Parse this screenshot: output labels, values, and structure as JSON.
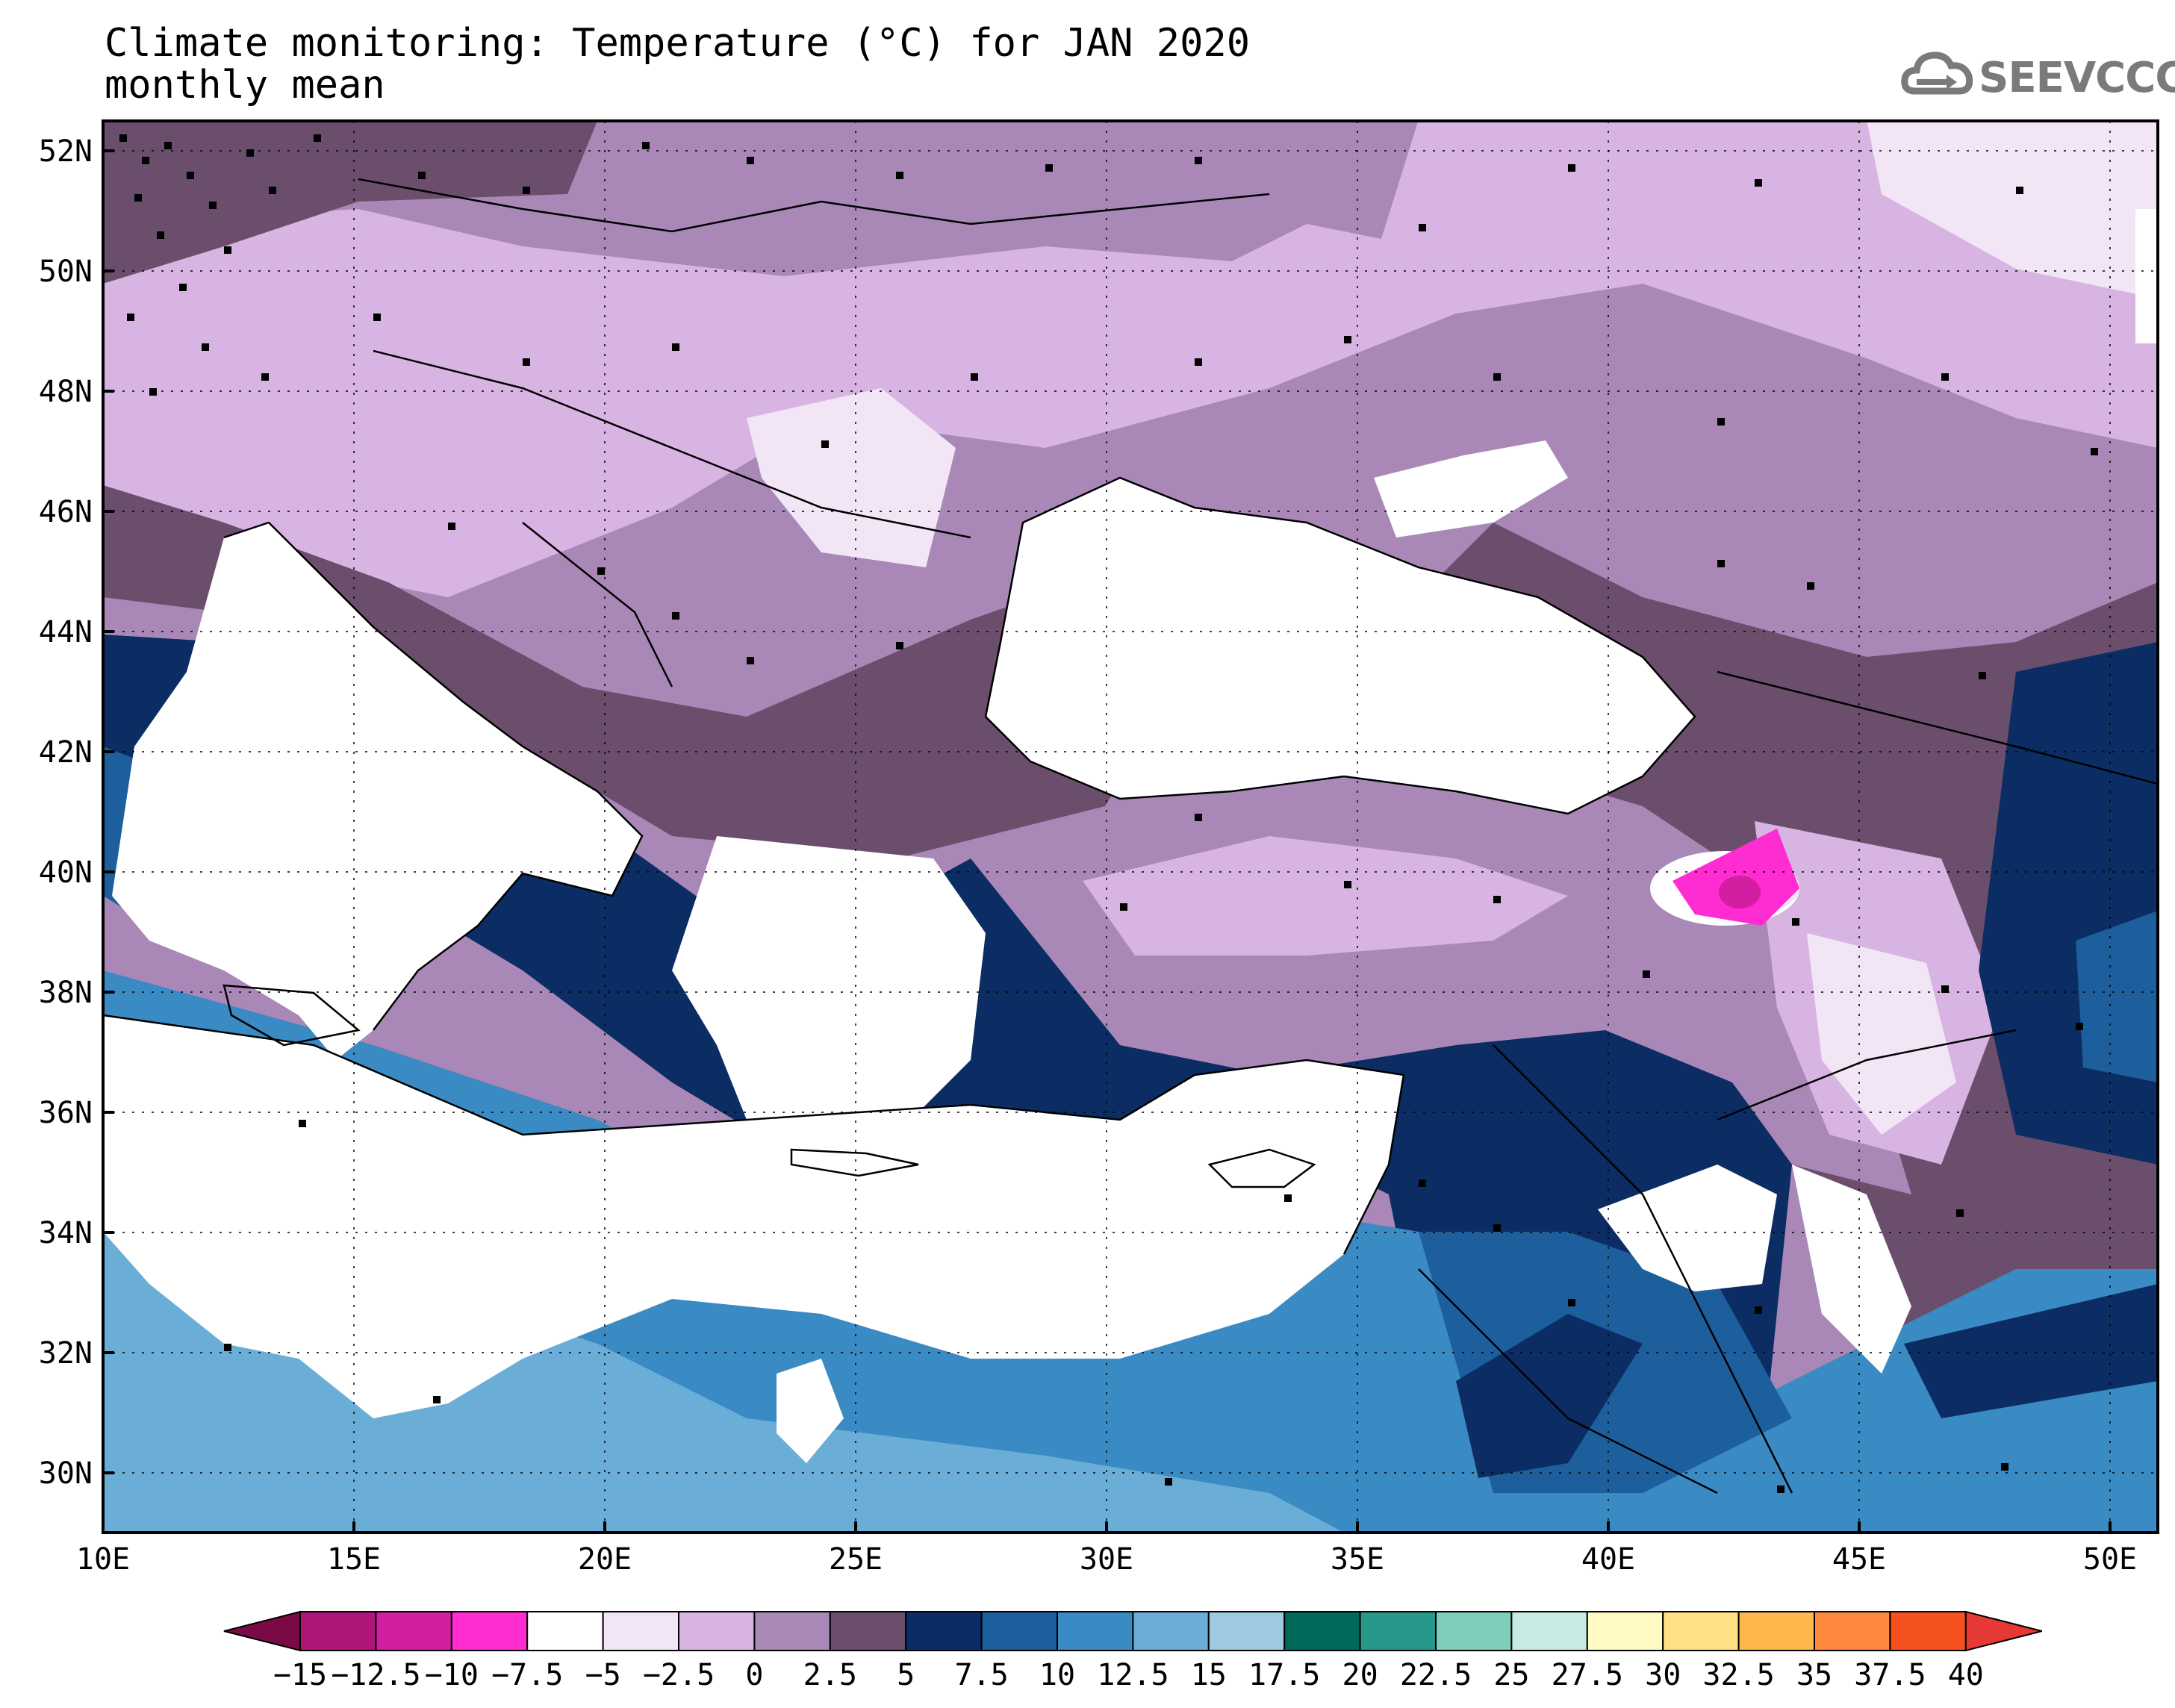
{
  "title": {
    "line1": "Climate monitoring: Temperature (°C) for JAN 2020",
    "line2": "monthly mean"
  },
  "logo": {
    "text": "SEEVCCC",
    "icon": "cloud-icon"
  },
  "map": {
    "lon_range": [
      10,
      51
    ],
    "lat_range": [
      29,
      52.5
    ],
    "lon_ticks": [
      "10E",
      "15E",
      "20E",
      "25E",
      "30E",
      "35E",
      "40E",
      "45E",
      "50E"
    ],
    "lat_ticks": [
      "52N",
      "50N",
      "48N",
      "46N",
      "44N",
      "42N",
      "40N",
      "38N",
      "36N",
      "34N",
      "32N",
      "30N"
    ],
    "gridlines": "dotted",
    "land_fill": "#ffffff",
    "stations": "black square markers"
  },
  "colorbar": {
    "labels": [
      "−15",
      "−12.5",
      "−10",
      "−7.5",
      "−5",
      "−2.5",
      "0",
      "2.5",
      "5",
      "7.5",
      "10",
      "12.5",
      "15",
      "17.5",
      "20",
      "22.5",
      "25",
      "27.5",
      "30",
      "32.5",
      "35",
      "37.5",
      "40"
    ],
    "colors": [
      "#7a0a45",
      "#b0157a",
      "#d21ea0",
      "#ff2cd2",
      "#ffffff",
      "#f2e6f6",
      "#d8b4e2",
      "#a988b8",
      "#6a4e6c",
      "#0b2d64",
      "#1d5f9c",
      "#3a8ac4",
      "#6aaed8",
      "#9ecae1",
      "#00695c",
      "#26998a",
      "#7fcdbb",
      "#c7eae3",
      "#fff9c4",
      "#ffe082",
      "#ffb74d",
      "#ff8a3d",
      "#f4511e",
      "#e53935"
    ]
  }
}
